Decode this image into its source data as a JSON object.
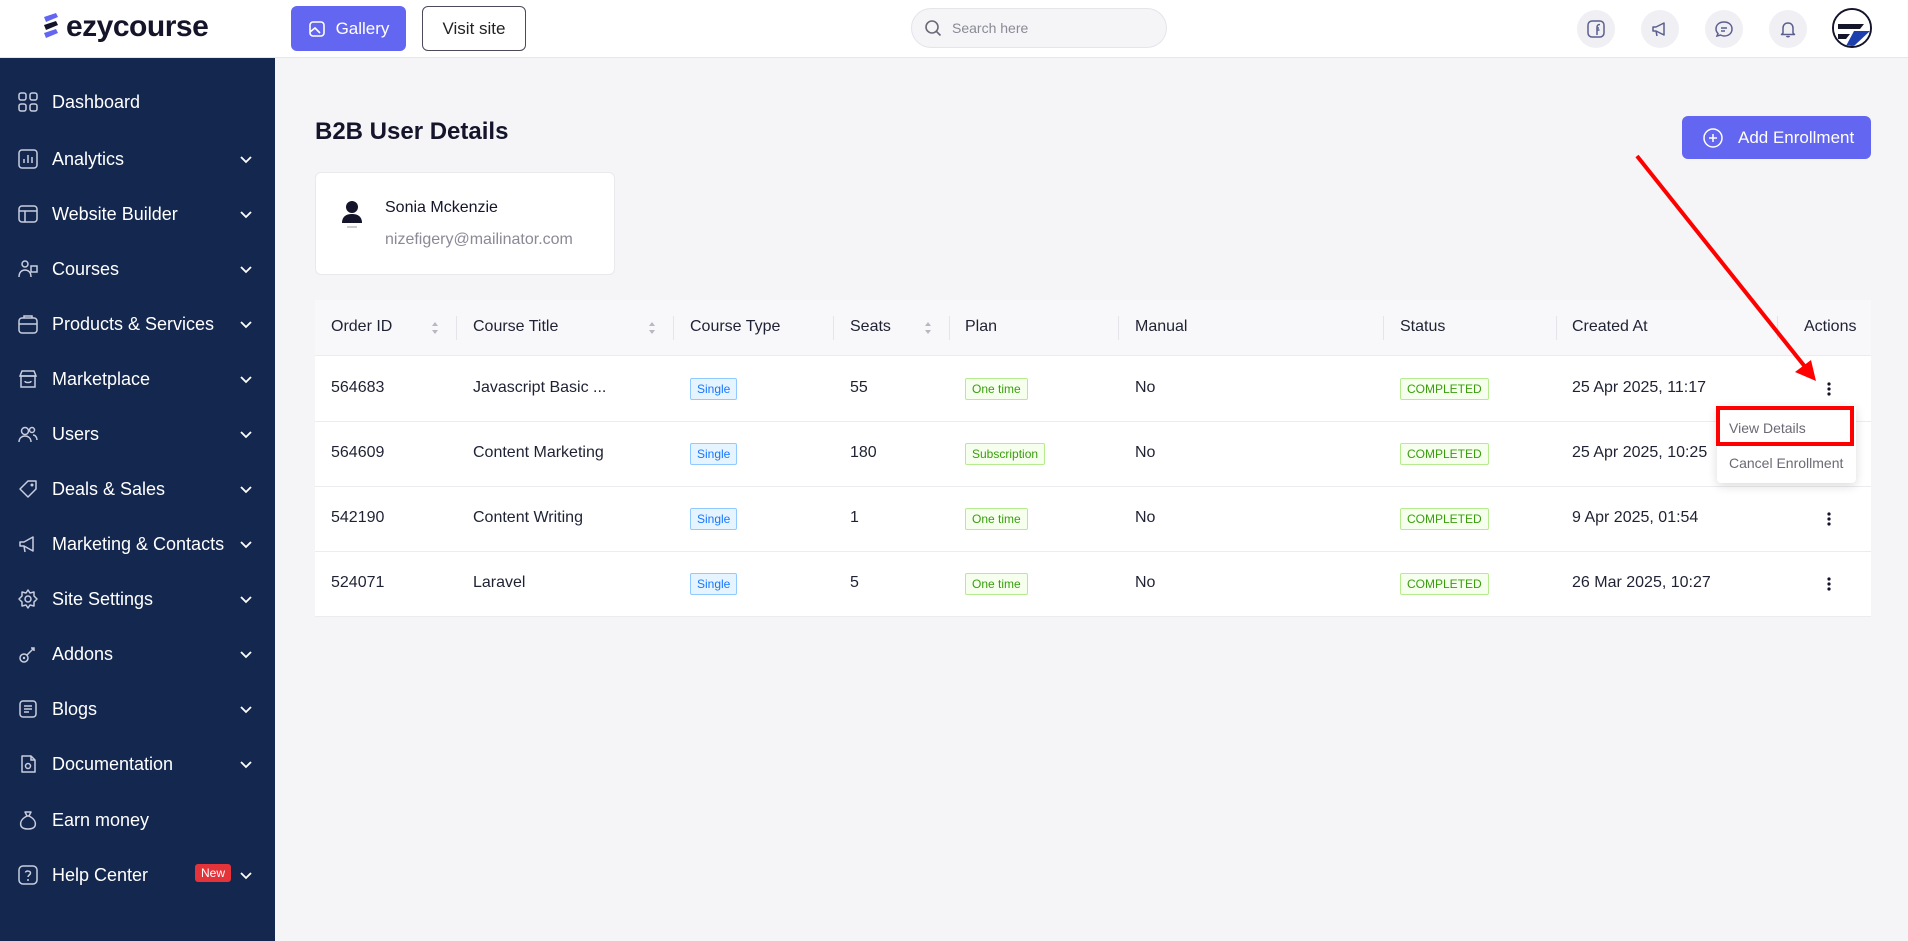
{
  "brand": {
    "name": "ezycourse"
  },
  "header": {
    "gallery_label": "Gallery",
    "visit_site_label": "Visit site",
    "search_placeholder": "Search here",
    "icons": [
      "facebook-icon",
      "megaphone-icon",
      "chat-icon",
      "bell-icon"
    ]
  },
  "sidebar": {
    "items": [
      {
        "label": "Dashboard",
        "icon": "dashboard-icon",
        "has_chevron": false
      },
      {
        "label": "Analytics",
        "icon": "analytics-icon",
        "has_chevron": true
      },
      {
        "label": "Website Builder",
        "icon": "website-builder-icon",
        "has_chevron": true
      },
      {
        "label": "Courses",
        "icon": "courses-icon",
        "has_chevron": true
      },
      {
        "label": "Products & Services",
        "icon": "products-icon",
        "has_chevron": true
      },
      {
        "label": "Marketplace",
        "icon": "marketplace-icon",
        "has_chevron": true
      },
      {
        "label": "Users",
        "icon": "users-icon",
        "has_chevron": true
      },
      {
        "label": "Deals & Sales",
        "icon": "tag-icon",
        "has_chevron": true
      },
      {
        "label": "Marketing & Contacts",
        "icon": "megaphone-icon",
        "has_chevron": true
      },
      {
        "label": "Site Settings",
        "icon": "gear-icon",
        "has_chevron": true
      },
      {
        "label": "Addons",
        "icon": "addons-icon",
        "has_chevron": true
      },
      {
        "label": "Blogs",
        "icon": "blogs-icon",
        "has_chevron": true
      },
      {
        "label": "Documentation",
        "icon": "documentation-icon",
        "has_chevron": true
      },
      {
        "label": "Earn money",
        "icon": "money-bag-icon",
        "has_chevron": false
      },
      {
        "label": "Help Center",
        "icon": "help-icon",
        "has_chevron": true,
        "badge": "New"
      }
    ]
  },
  "main": {
    "title": "B2B User Details",
    "add_button_label": "Add Enrollment",
    "user": {
      "name": "Sonia Mckenzie",
      "email": "nizefigery@mailinator.com"
    },
    "table": {
      "columns": [
        "Order ID",
        "Course Title",
        "Course Type",
        "Seats",
        "Plan",
        "Manual",
        "Status",
        "Created At",
        "Actions"
      ],
      "rows": [
        {
          "order_id": "564683",
          "course_title": "Javascript Basic ...",
          "course_type": "Single",
          "seats": "55",
          "plan": "One time",
          "manual": "No",
          "status": "COMPLETED",
          "created_at": "25 Apr 2025, 11:17"
        },
        {
          "order_id": "564609",
          "course_title": "Content Marketing",
          "course_type": "Single",
          "seats": "180",
          "plan": "Subscription",
          "manual": "No",
          "status": "COMPLETED",
          "created_at": "25 Apr 2025, 10:25"
        },
        {
          "order_id": "542190",
          "course_title": "Content Writing",
          "course_type": "Single",
          "seats": "1",
          "plan": "One time",
          "manual": "No",
          "status": "COMPLETED",
          "created_at": "9 Apr 2025, 01:54"
        },
        {
          "order_id": "524071",
          "course_title": "Laravel",
          "course_type": "Single",
          "seats": "5",
          "plan": "One time",
          "manual": "No",
          "status": "COMPLETED",
          "created_at": "26 Mar 2025, 10:27"
        }
      ]
    },
    "actions_menu": {
      "items": [
        "View Details",
        "Cancel Enrollment"
      ]
    }
  },
  "colors": {
    "accent": "#6366f1",
    "sidebar_bg": "#14274e",
    "annotation_red": "#ff0000"
  }
}
